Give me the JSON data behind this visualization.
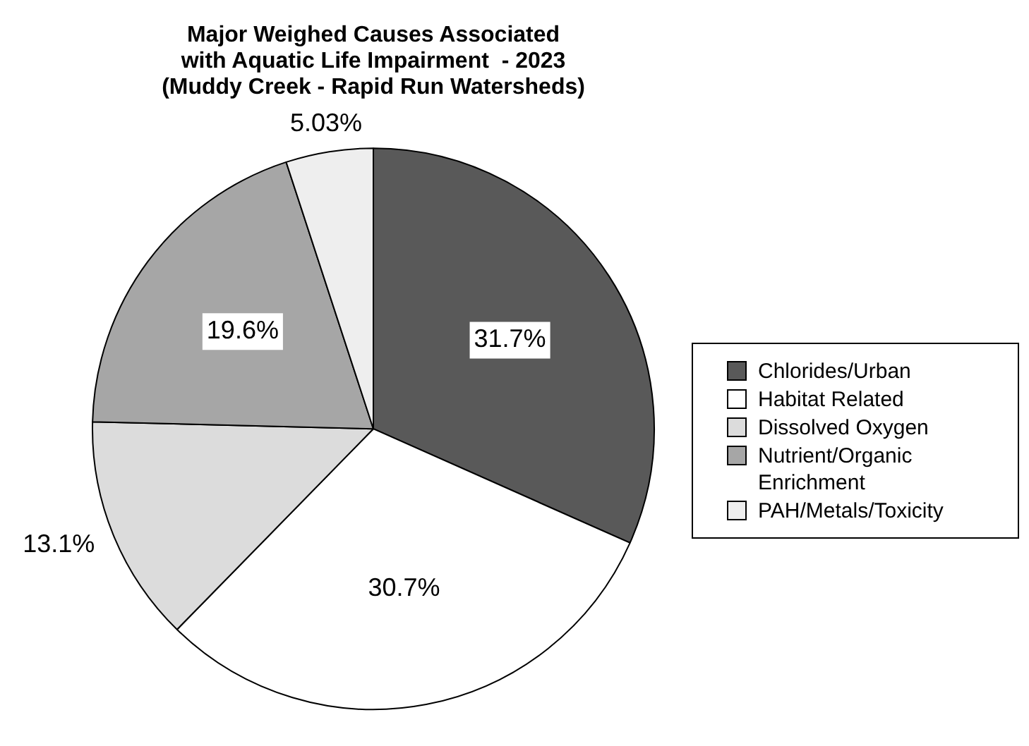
{
  "chart_data": {
    "type": "pie",
    "title": "Major Weighed Causes Associated\nwith Aquatic Life Impairment  - 2023\n(Muddy Creek - Rapid Run Watersheds)",
    "categories": [
      "Chlorides/Urban",
      "Habitat Related",
      "Dissolved Oxygen",
      "Nutrient/Organic Enrichment",
      "PAH/Metals/Toxicity"
    ],
    "values": [
      31.7,
      30.7,
      13.1,
      19.6,
      5.03
    ],
    "value_labels": [
      "31.7%",
      "30.7%",
      "13.1%",
      "19.6%",
      "5.03%"
    ],
    "colors": [
      "#595959",
      "#ffffff",
      "#dcdcdc",
      "#a6a6a6",
      "#eeeeee"
    ],
    "legend": "right"
  }
}
